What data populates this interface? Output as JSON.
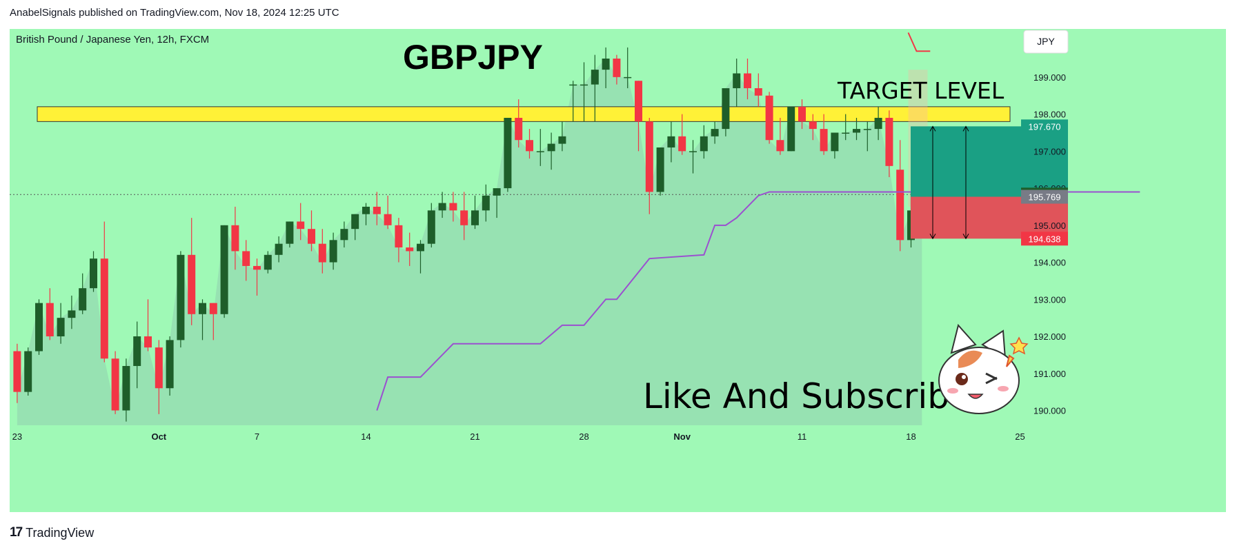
{
  "header": {
    "published_text": "AnabelSignals published on TradingView.com, Nov 18, 2024 12:25 UTC"
  },
  "chart_info": {
    "symbol_description": "British Pound / Japanese Yen, 12h, FXCM",
    "currency_button": "JPY"
  },
  "annotations": {
    "title": "GBPJPY",
    "target_label": "TARGET LEVEL",
    "cta_text": "Like And Subscribe",
    "mascot_icon": "cat-mascot-icon"
  },
  "footer": {
    "brand": "TradingView",
    "logo_icon": "tradingview-logo-icon"
  },
  "colors": {
    "bull": "#1e5e2a",
    "bear": "#f23645",
    "background": "#9ff9b6",
    "target_zone": "#fff137",
    "profit_zone": "#1aa084",
    "loss_zone": "#e0545a",
    "stop_line": "#9b4fd0"
  },
  "chart_data": {
    "type": "candlestick",
    "interval": "12h",
    "ylim": [
      189.6,
      200.3
    ],
    "y_ticks": [
      "190.000",
      "191.000",
      "192.000",
      "193.000",
      "194.000",
      "195.000",
      "196.000",
      "197.000",
      "198.000",
      "199.000"
    ],
    "x_ticks": [
      {
        "label": "23",
        "bold": false,
        "index": 0
      },
      {
        "label": "Oct",
        "bold": true,
        "index": 13
      },
      {
        "label": "7",
        "bold": false,
        "index": 22
      },
      {
        "label": "14",
        "bold": false,
        "index": 32
      },
      {
        "label": "21",
        "bold": false,
        "index": 42
      },
      {
        "label": "28",
        "bold": false,
        "index": 52
      },
      {
        "label": "Nov",
        "bold": true,
        "index": 61
      },
      {
        "label": "11",
        "bold": false,
        "index": 72
      },
      {
        "label": "18",
        "bold": false,
        "index": 82
      },
      {
        "label": "25",
        "bold": false,
        "index": 92
      }
    ],
    "candles": [
      [
        191.6,
        191.8,
        190.2,
        190.5
      ],
      [
        190.5,
        191.7,
        190.4,
        191.6
      ],
      [
        191.6,
        193.0,
        191.5,
        192.9
      ],
      [
        192.9,
        193.3,
        191.9,
        192.0
      ],
      [
        192.0,
        192.9,
        191.8,
        192.5
      ],
      [
        192.5,
        193.1,
        192.2,
        192.7
      ],
      [
        192.7,
        193.7,
        192.6,
        193.3
      ],
      [
        193.3,
        194.3,
        193.2,
        194.1
      ],
      [
        194.1,
        195.1,
        191.3,
        191.4
      ],
      [
        191.4,
        191.6,
        189.9,
        190.0
      ],
      [
        190.0,
        191.4,
        189.7,
        191.2
      ],
      [
        191.2,
        192.4,
        190.6,
        192.0
      ],
      [
        192.0,
        193.0,
        191.6,
        191.7
      ],
      [
        191.7,
        191.9,
        189.9,
        190.6
      ],
      [
        190.6,
        192.0,
        190.4,
        191.9
      ],
      [
        191.9,
        194.3,
        191.7,
        194.2
      ],
      [
        194.2,
        195.2,
        192.3,
        192.6
      ],
      [
        192.6,
        193.0,
        191.9,
        192.9
      ],
      [
        192.9,
        192.9,
        191.9,
        192.6
      ],
      [
        192.6,
        195.0,
        192.5,
        195.0
      ],
      [
        195.0,
        195.5,
        193.8,
        194.3
      ],
      [
        194.3,
        194.6,
        193.5,
        193.9
      ],
      [
        193.9,
        194.1,
        193.1,
        193.8
      ],
      [
        193.8,
        194.3,
        193.7,
        194.2
      ],
      [
        194.2,
        194.7,
        194.0,
        194.5
      ],
      [
        194.5,
        195.1,
        194.4,
        195.1
      ],
      [
        195.1,
        195.6,
        194.6,
        194.9
      ],
      [
        194.9,
        195.4,
        194.3,
        194.5
      ],
      [
        194.5,
        194.9,
        193.7,
        194.0
      ],
      [
        194.0,
        194.8,
        193.8,
        194.6
      ],
      [
        194.6,
        195.1,
        194.4,
        194.9
      ],
      [
        194.9,
        195.3,
        194.6,
        195.3
      ],
      [
        195.3,
        195.6,
        195.0,
        195.5
      ],
      [
        195.5,
        195.9,
        195.0,
        195.3
      ],
      [
        195.3,
        195.8,
        194.9,
        195.0
      ],
      [
        195.0,
        195.2,
        194.0,
        194.4
      ],
      [
        194.4,
        194.8,
        193.9,
        194.3
      ],
      [
        194.3,
        194.6,
        193.7,
        194.5
      ],
      [
        194.5,
        195.6,
        194.4,
        195.4
      ],
      [
        195.4,
        195.9,
        195.2,
        195.6
      ],
      [
        195.6,
        195.9,
        195.1,
        195.4
      ],
      [
        195.4,
        195.9,
        194.6,
        195.0
      ],
      [
        195.0,
        195.8,
        194.9,
        195.4
      ],
      [
        195.4,
        196.1,
        195.1,
        195.8
      ],
      [
        195.8,
        196.0,
        195.2,
        196.0
      ],
      [
        196.0,
        197.9,
        195.9,
        197.9
      ],
      [
        197.9,
        198.4,
        197.1,
        197.3
      ],
      [
        197.3,
        197.6,
        196.8,
        197.0
      ],
      [
        197.0,
        197.6,
        196.6,
        197.0
      ],
      [
        197.0,
        197.5,
        196.5,
        197.2
      ],
      [
        197.2,
        197.8,
        197.0,
        197.4
      ],
      [
        198.8,
        198.9,
        197.8,
        198.8
      ],
      [
        198.8,
        199.4,
        197.8,
        198.8
      ],
      [
        198.8,
        199.6,
        197.8,
        199.2
      ],
      [
        199.2,
        199.8,
        198.7,
        199.5
      ],
      [
        199.5,
        199.6,
        198.8,
        199.0
      ],
      [
        199.0,
        199.8,
        198.7,
        199.0
      ],
      [
        198.9,
        198.9,
        197.0,
        197.8
      ],
      [
        197.8,
        197.9,
        195.3,
        195.9
      ],
      [
        195.9,
        197.1,
        195.8,
        197.1
      ],
      [
        197.1,
        197.8,
        196.7,
        197.4
      ],
      [
        197.4,
        198.0,
        196.9,
        197.0
      ],
      [
        197.0,
        197.3,
        196.4,
        197.0
      ],
      [
        197.0,
        197.7,
        196.8,
        197.4
      ],
      [
        197.4,
        197.8,
        197.2,
        197.6
      ],
      [
        197.6,
        198.7,
        197.4,
        198.7
      ],
      [
        198.7,
        199.5,
        198.2,
        199.1
      ],
      [
        199.1,
        199.5,
        198.4,
        198.7
      ],
      [
        198.7,
        199.1,
        198.2,
        198.5
      ],
      [
        198.5,
        198.6,
        197.2,
        197.3
      ],
      [
        197.3,
        197.9,
        196.9,
        197.0
      ],
      [
        197.0,
        198.2,
        197.0,
        198.2
      ],
      [
        198.2,
        198.4,
        197.6,
        197.8
      ],
      [
        197.8,
        198.0,
        197.3,
        197.6
      ],
      [
        197.6,
        198.0,
        196.9,
        197.0
      ],
      [
        197.0,
        197.4,
        196.8,
        197.5
      ],
      [
        197.5,
        198.0,
        197.3,
        197.5
      ],
      [
        197.5,
        197.9,
        197.3,
        197.6
      ],
      [
        197.6,
        197.8,
        197.0,
        197.6
      ],
      [
        197.6,
        198.2,
        197.3,
        197.9
      ],
      [
        197.9,
        198.1,
        196.3,
        196.6
      ],
      [
        196.5,
        197.3,
        194.3,
        194.6
      ],
      [
        194.6,
        195.9,
        194.4,
        195.4
      ],
      [
        195.4,
        195.8,
        195.5,
        195.8
      ]
    ],
    "stop_line": [
      [
        33,
        190.0
      ],
      [
        34,
        190.9
      ],
      [
        37,
        190.9
      ],
      [
        38,
        191.2
      ],
      [
        40,
        191.8
      ],
      [
        48,
        191.8
      ],
      [
        50,
        192.3
      ],
      [
        52,
        192.3
      ],
      [
        54,
        193.0
      ],
      [
        55,
        193.0
      ],
      [
        58,
        194.1
      ],
      [
        63,
        194.2
      ],
      [
        64,
        195.0
      ],
      [
        65,
        195.0
      ],
      [
        66,
        195.2
      ],
      [
        68,
        195.8
      ],
      [
        69,
        195.9
      ],
      [
        103,
        195.9
      ]
    ],
    "target_zone": [
      197.8,
      198.2
    ],
    "position": {
      "entry": 195.769,
      "target": 197.67,
      "stop": 194.638
    },
    "price_labels": [
      {
        "value": 197.67,
        "text": "197.670",
        "color": "#1aa084"
      },
      {
        "value": 195.829,
        "text": "195.829",
        "color": "#1e5e2a"
      },
      {
        "value": 195.769,
        "text": "195.769",
        "color": "#787b86"
      },
      {
        "value": 194.638,
        "text": "194.638",
        "color": "#f23645"
      }
    ]
  }
}
